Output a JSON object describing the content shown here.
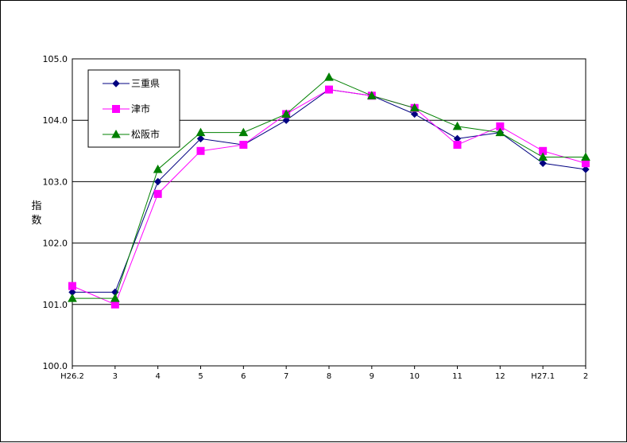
{
  "chart_data": {
    "type": "line",
    "title": "",
    "xlabel": "",
    "ylabel": "指数",
    "categories": [
      "H26.2",
      "3",
      "4",
      "5",
      "6",
      "7",
      "8",
      "9",
      "10",
      "11",
      "12",
      "H27.1",
      "2"
    ],
    "ylim": [
      100.0,
      105.0
    ],
    "yticks": [
      "100.0",
      "101.0",
      "102.0",
      "103.0",
      "104.0",
      "105.0"
    ],
    "grid": true,
    "legend_position": "top-left",
    "series": [
      {
        "name": "三重県",
        "color": "#000080",
        "marker": "diamond",
        "values": [
          101.2,
          101.2,
          103.0,
          103.7,
          103.6,
          104.0,
          104.5,
          104.4,
          104.1,
          103.7,
          103.8,
          103.3,
          103.2
        ]
      },
      {
        "name": "津市",
        "color": "#ff00ff",
        "marker": "square",
        "values": [
          101.3,
          101.0,
          102.8,
          103.5,
          103.6,
          104.1,
          104.5,
          104.4,
          104.2,
          103.6,
          103.9,
          103.5,
          103.3
        ]
      },
      {
        "name": "松阪市",
        "color": "#008000",
        "marker": "triangle",
        "values": [
          101.1,
          101.1,
          103.2,
          103.8,
          103.8,
          104.1,
          104.7,
          104.4,
          104.2,
          103.9,
          103.8,
          103.4,
          103.4
        ]
      }
    ]
  }
}
